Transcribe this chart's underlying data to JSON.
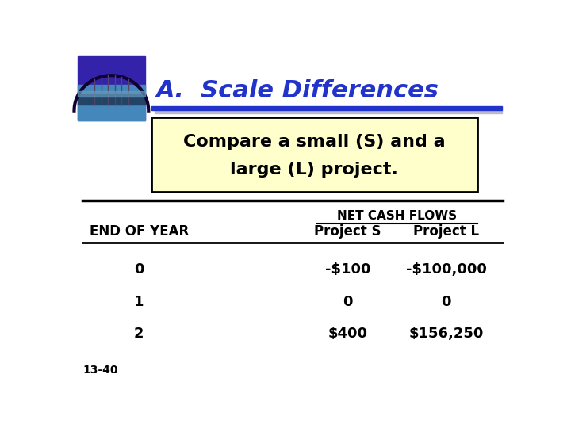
{
  "title": "A.  Scale Differences",
  "title_color": "#2233CC",
  "title_fontsize": 22,
  "subtitle_box_text_line1": "Compare a small (S) and a",
  "subtitle_box_text_line2": "large (L) project.",
  "subtitle_box_bg": "#FFFFCC",
  "subtitle_box_edge": "#000000",
  "table_header1": "NET CASH FLOWS",
  "table_col0": "END OF YEAR",
  "table_col1": "Project S",
  "table_col2": "Project L",
  "table_rows": [
    [
      "0",
      "-$100",
      "-$100,000"
    ],
    [
      "1",
      "0",
      "0"
    ],
    [
      "2",
      "$400",
      "$156,250"
    ]
  ],
  "footer": "13-40",
  "bg_color": "#FFFFFF",
  "text_color": "#000000",
  "header_line_color": "#000000",
  "blue_bar_color": "#2233CC",
  "gray_bar_color": "#BBBBCC",
  "img_bg": "#3322AA",
  "img_water": "#4488BB",
  "img_dark": "#221144"
}
